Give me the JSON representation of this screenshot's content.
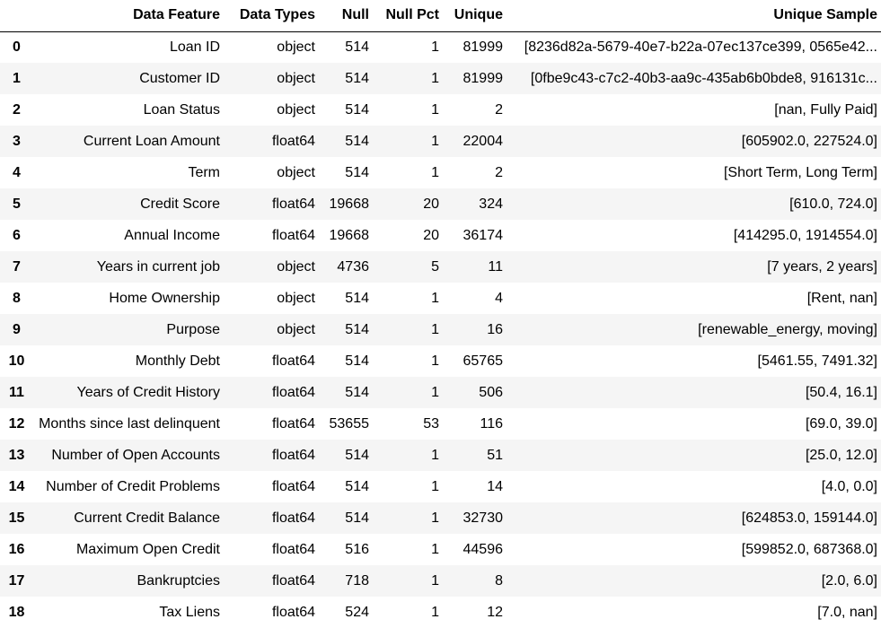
{
  "columns": [
    "",
    "Data Feature",
    "Data Types",
    "Null",
    "Null Pct",
    "Unique",
    "Unique Sample"
  ],
  "rows": [
    {
      "index": "0",
      "feature": "Loan ID",
      "dtype": "object",
      "null": "514",
      "null_pct": "1",
      "unique": "81999",
      "sample": "[8236d82a-5679-40e7-b22a-07ec137ce399, 0565e42..."
    },
    {
      "index": "1",
      "feature": "Customer ID",
      "dtype": "object",
      "null": "514",
      "null_pct": "1",
      "unique": "81999",
      "sample": "[0fbe9c43-c7c2-40b3-aa9c-435ab6b0bde8, 916131c..."
    },
    {
      "index": "2",
      "feature": "Loan Status",
      "dtype": "object",
      "null": "514",
      "null_pct": "1",
      "unique": "2",
      "sample": "[nan, Fully Paid]"
    },
    {
      "index": "3",
      "feature": "Current Loan Amount",
      "dtype": "float64",
      "null": "514",
      "null_pct": "1",
      "unique": "22004",
      "sample": "[605902.0, 227524.0]"
    },
    {
      "index": "4",
      "feature": "Term",
      "dtype": "object",
      "null": "514",
      "null_pct": "1",
      "unique": "2",
      "sample": "[Short Term, Long Term]"
    },
    {
      "index": "5",
      "feature": "Credit Score",
      "dtype": "float64",
      "null": "19668",
      "null_pct": "20",
      "unique": "324",
      "sample": "[610.0, 724.0]"
    },
    {
      "index": "6",
      "feature": "Annual Income",
      "dtype": "float64",
      "null": "19668",
      "null_pct": "20",
      "unique": "36174",
      "sample": "[414295.0, 1914554.0]"
    },
    {
      "index": "7",
      "feature": "Years in current job",
      "dtype": "object",
      "null": "4736",
      "null_pct": "5",
      "unique": "11",
      "sample": "[7 years, 2 years]"
    },
    {
      "index": "8",
      "feature": "Home Ownership",
      "dtype": "object",
      "null": "514",
      "null_pct": "1",
      "unique": "4",
      "sample": "[Rent, nan]"
    },
    {
      "index": "9",
      "feature": "Purpose",
      "dtype": "object",
      "null": "514",
      "null_pct": "1",
      "unique": "16",
      "sample": "[renewable_energy, moving]"
    },
    {
      "index": "10",
      "feature": "Monthly Debt",
      "dtype": "float64",
      "null": "514",
      "null_pct": "1",
      "unique": "65765",
      "sample": "[5461.55, 7491.32]"
    },
    {
      "index": "11",
      "feature": "Years of Credit History",
      "dtype": "float64",
      "null": "514",
      "null_pct": "1",
      "unique": "506",
      "sample": "[50.4, 16.1]"
    },
    {
      "index": "12",
      "feature": "Months since last delinquent",
      "dtype": "float64",
      "null": "53655",
      "null_pct": "53",
      "unique": "116",
      "sample": "[69.0, 39.0]"
    },
    {
      "index": "13",
      "feature": "Number of Open Accounts",
      "dtype": "float64",
      "null": "514",
      "null_pct": "1",
      "unique": "51",
      "sample": "[25.0, 12.0]"
    },
    {
      "index": "14",
      "feature": "Number of Credit Problems",
      "dtype": "float64",
      "null": "514",
      "null_pct": "1",
      "unique": "14",
      "sample": "[4.0, 0.0]"
    },
    {
      "index": "15",
      "feature": "Current Credit Balance",
      "dtype": "float64",
      "null": "514",
      "null_pct": "1",
      "unique": "32730",
      "sample": "[624853.0, 159144.0]"
    },
    {
      "index": "16",
      "feature": "Maximum Open Credit",
      "dtype": "float64",
      "null": "516",
      "null_pct": "1",
      "unique": "44596",
      "sample": "[599852.0, 687368.0]"
    },
    {
      "index": "17",
      "feature": "Bankruptcies",
      "dtype": "float64",
      "null": "718",
      "null_pct": "1",
      "unique": "8",
      "sample": "[2.0, 6.0]"
    },
    {
      "index": "18",
      "feature": "Tax Liens",
      "dtype": "float64",
      "null": "524",
      "null_pct": "1",
      "unique": "12",
      "sample": "[7.0, nan]"
    }
  ]
}
